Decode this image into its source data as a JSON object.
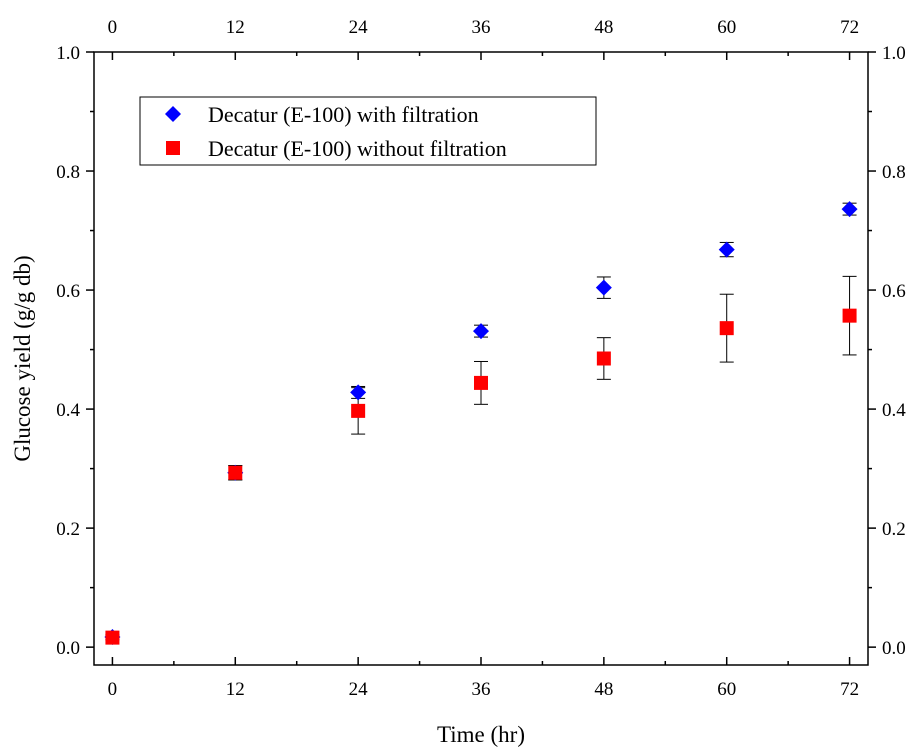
{
  "chart_data": {
    "type": "scatter",
    "title": "",
    "xlabel": "Time (hr)",
    "ylabel": "Glucose yield (g/g db)",
    "xlim": [
      -1.8,
      73.8
    ],
    "ylim": [
      -0.03,
      1.0
    ],
    "x_ticks": [
      0,
      12,
      24,
      36,
      48,
      60,
      72
    ],
    "x_tick_labels": [
      "0",
      "12",
      "24",
      "36",
      "48",
      "60",
      "72"
    ],
    "y_ticks": [
      0.0,
      0.2,
      0.4,
      0.6,
      0.8,
      1.0
    ],
    "y_tick_labels": [
      "0.0",
      "0.2",
      "0.4",
      "0.6",
      "0.8",
      "1.0"
    ],
    "mirror_axes": true,
    "grid": false,
    "legend_position": "top-left",
    "series": [
      {
        "name": "Decatur (E-100) with filtration",
        "marker": "diamond",
        "color": "#0000ff",
        "x": [
          0,
          12,
          24,
          36,
          48,
          60,
          72
        ],
        "y": [
          0.017,
          0.293,
          0.428,
          0.531,
          0.604,
          0.668,
          0.736
        ],
        "err": [
          0.004,
          0.012,
          0.01,
          0.01,
          0.018,
          0.012,
          0.01
        ]
      },
      {
        "name": "Decatur (E-100) without filtration",
        "marker": "square",
        "color": "#ff0000",
        "x": [
          0,
          12,
          24,
          36,
          48,
          60,
          72
        ],
        "y": [
          0.016,
          0.293,
          0.397,
          0.444,
          0.485,
          0.536,
          0.557
        ],
        "err": [
          0.004,
          0.012,
          0.039,
          0.036,
          0.035,
          0.057,
          0.066
        ]
      }
    ]
  }
}
